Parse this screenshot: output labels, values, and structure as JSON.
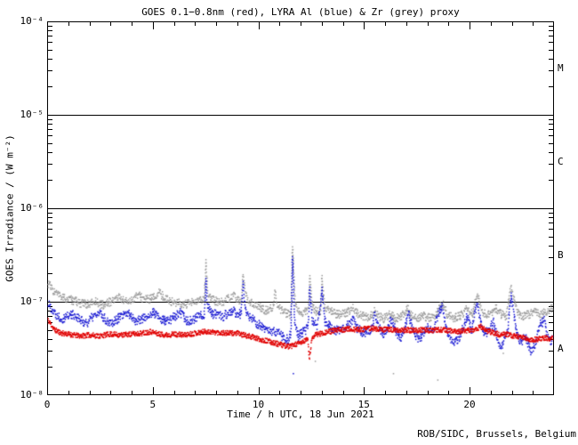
{
  "chart_data": {
    "type": "scatter",
    "title": "GOES 0.1−0.8nm (red), LYRA Al (blue) & Zr (grey) proxy",
    "xlabel": "Time / h UTC, 18 Jun 2021",
    "ylabel": "GOES Irradiance / (W m⁻²)",
    "credit": "ROB/SIDC, Brussels, Belgium",
    "x_range_hours": [
      0,
      24
    ],
    "x_major_ticks": [
      0,
      5,
      10,
      15,
      20
    ],
    "x_minor_step_hours": 1,
    "y_scale": "log",
    "y_decade_exponents": [
      -4,
      -5,
      -6,
      -7,
      -8
    ],
    "y_tick_labels": [
      "10⁻⁴",
      "10⁻⁵",
      "10⁻⁶",
      "10⁻⁷",
      "10⁻⁸"
    ],
    "horizontal_lines_w_m2": [
      1e-05,
      1e-06,
      1e-07
    ],
    "flare_class_labels": [
      "M",
      "C",
      "B",
      "A"
    ],
    "grid": "off",
    "legend": "in title",
    "value_unit": "1e-8 W m^-2",
    "series": [
      {
        "name": "GOES 0.1-0.8nm",
        "color": "#e00000",
        "points": [
          [
            0,
            6.6
          ],
          [
            0.35,
            5
          ],
          [
            0.7,
            4.6
          ],
          [
            1,
            4.5
          ],
          [
            1.5,
            4.3
          ],
          [
            2,
            4.4
          ],
          [
            2.5,
            4.3
          ],
          [
            3,
            4.5
          ],
          [
            3.5,
            4.4
          ],
          [
            4,
            4.5
          ],
          [
            4.5,
            4.6
          ],
          [
            4.9,
            4.8
          ],
          [
            5.3,
            4.5
          ],
          [
            5.7,
            4.4
          ],
          [
            6,
            4.5
          ],
          [
            6.5,
            4.4
          ],
          [
            7,
            4.6
          ],
          [
            7.5,
            4.8
          ],
          [
            8,
            4.7
          ],
          [
            8.5,
            4.6
          ],
          [
            9,
            4.6
          ],
          [
            9.3,
            4.4
          ],
          [
            9.7,
            4.2
          ],
          [
            10,
            4
          ],
          [
            10.4,
            3.8
          ],
          [
            10.8,
            3.6
          ],
          [
            11.2,
            3.4
          ],
          [
            11.5,
            3.3
          ],
          [
            11.8,
            3.5
          ],
          [
            12.1,
            3.7
          ],
          [
            12.35,
            4
          ],
          [
            12.42,
            2.4
          ],
          [
            12.55,
            4.2
          ],
          [
            12.8,
            4.5
          ],
          [
            13,
            4.6
          ],
          [
            13.4,
            4.8
          ],
          [
            13.8,
            5
          ],
          [
            14.2,
            5.1
          ],
          [
            14.6,
            5
          ],
          [
            15,
            5.1
          ],
          [
            15.4,
            5.2
          ],
          [
            15.8,
            5
          ],
          [
            16.2,
            5.1
          ],
          [
            16.6,
            4.9
          ],
          [
            17,
            5
          ],
          [
            17.4,
            4.9
          ],
          [
            17.8,
            5
          ],
          [
            18.2,
            4.9
          ],
          [
            18.6,
            5
          ],
          [
            19,
            4.9
          ],
          [
            19.4,
            4.8
          ],
          [
            19.8,
            4.9
          ],
          [
            20.2,
            5
          ],
          [
            20.55,
            5.4
          ],
          [
            20.9,
            4.8
          ],
          [
            21.2,
            4.6
          ],
          [
            21.5,
            4.4
          ],
          [
            21.8,
            4.5
          ],
          [
            22.1,
            4.3
          ],
          [
            22.4,
            4.2
          ],
          [
            22.7,
            4
          ],
          [
            23,
            3.9
          ],
          [
            23.3,
            4
          ],
          [
            23.6,
            4.1
          ],
          [
            23.85,
            4
          ],
          [
            24,
            4.2
          ]
        ],
        "outliers": []
      },
      {
        "name": "LYRA Al proxy",
        "color": "#1818d2",
        "points": [
          [
            0,
            10
          ],
          [
            0.35,
            7.6
          ],
          [
            0.7,
            6.6
          ],
          [
            0.95,
            7
          ],
          [
            1.25,
            7.4
          ],
          [
            1.6,
            6.2
          ],
          [
            1.9,
            6
          ],
          [
            2.2,
            7
          ],
          [
            2.5,
            7.5
          ],
          [
            2.8,
            6.3
          ],
          [
            3.1,
            6.1
          ],
          [
            3.5,
            6.9
          ],
          [
            3.85,
            7.5
          ],
          [
            4.2,
            6.3
          ],
          [
            4.55,
            6.6
          ],
          [
            4.85,
            7.3
          ],
          [
            5.05,
            7.6
          ],
          [
            5.35,
            6.5
          ],
          [
            5.7,
            6.2
          ],
          [
            6,
            6.8
          ],
          [
            6.3,
            7.5
          ],
          [
            6.6,
            6.3
          ],
          [
            6.9,
            6.4
          ],
          [
            7.2,
            7
          ],
          [
            7.45,
            7.4
          ],
          [
            7.52,
            17
          ],
          [
            7.6,
            9
          ],
          [
            7.75,
            7.6
          ],
          [
            8,
            7.2
          ],
          [
            8.3,
            6.9
          ],
          [
            8.6,
            7.6
          ],
          [
            8.85,
            7.9
          ],
          [
            9.05,
            7.2
          ],
          [
            9.2,
            7.6
          ],
          [
            9.28,
            15
          ],
          [
            9.4,
            8
          ],
          [
            9.55,
            7
          ],
          [
            9.8,
            6.2
          ],
          [
            10.05,
            5.6
          ],
          [
            10.3,
            5.2
          ],
          [
            10.6,
            4.6
          ],
          [
            10.9,
            4.9
          ],
          [
            11.15,
            4.2
          ],
          [
            11.4,
            3.9
          ],
          [
            11.55,
            4.5
          ],
          [
            11.62,
            33
          ],
          [
            11.72,
            5.5
          ],
          [
            11.9,
            4.3
          ],
          [
            12.1,
            4.7
          ],
          [
            12.35,
            5.2
          ],
          [
            12.44,
            13
          ],
          [
            12.55,
            6.2
          ],
          [
            12.8,
            5.4
          ],
          [
            13.02,
            13
          ],
          [
            13.15,
            6.2
          ],
          [
            13.35,
            5.6
          ],
          [
            13.65,
            5
          ],
          [
            13.95,
            4.9
          ],
          [
            14.25,
            5.6
          ],
          [
            14.5,
            6.6
          ],
          [
            14.65,
            5.3
          ],
          [
            14.9,
            4.7
          ],
          [
            15.1,
            4.6
          ],
          [
            15.35,
            5.2
          ],
          [
            15.52,
            7.4
          ],
          [
            15.7,
            5.5
          ],
          [
            15.95,
            4.5
          ],
          [
            16.1,
            5.3
          ],
          [
            16.3,
            6.5
          ],
          [
            16.55,
            4.7
          ],
          [
            16.75,
            4.1
          ],
          [
            16.95,
            5.2
          ],
          [
            17.08,
            7.8
          ],
          [
            17.25,
            5.7
          ],
          [
            17.45,
            4.3
          ],
          [
            17.65,
            3.9
          ],
          [
            17.85,
            4.7
          ],
          [
            18.05,
            5.3
          ],
          [
            18.25,
            4.5
          ],
          [
            18.5,
            7
          ],
          [
            18.72,
            9.2
          ],
          [
            18.9,
            5.1
          ],
          [
            19.1,
            4.1
          ],
          [
            19.35,
            3.7
          ],
          [
            19.6,
            4.5
          ],
          [
            19.9,
            7.2
          ],
          [
            20.1,
            4.9
          ],
          [
            20.37,
            10
          ],
          [
            20.55,
            5.5
          ],
          [
            20.75,
            4.5
          ],
          [
            20.95,
            5.3
          ],
          [
            21.15,
            6
          ],
          [
            21.35,
            3.7
          ],
          [
            21.55,
            3.4
          ],
          [
            21.8,
            4.7
          ],
          [
            21.97,
            12
          ],
          [
            22.08,
            8
          ],
          [
            22.25,
            4.7
          ],
          [
            22.45,
            3.6
          ],
          [
            22.65,
            4.3
          ],
          [
            22.9,
            3
          ],
          [
            23.1,
            3.5
          ],
          [
            23.35,
            5.7
          ],
          [
            23.55,
            6.3
          ],
          [
            23.7,
            4.1
          ],
          [
            23.87,
            3.6
          ],
          [
            24,
            4.6
          ]
        ],
        "outliers": [
          [
            11.66,
            1.7
          ]
        ]
      },
      {
        "name": "LYRA Zr proxy",
        "color": "#9c9c9c",
        "points": [
          [
            0,
            16.5
          ],
          [
            0.3,
            13
          ],
          [
            0.6,
            11.5
          ],
          [
            1,
            10.6
          ],
          [
            1.3,
            10.2
          ],
          [
            1.6,
            9.6
          ],
          [
            2,
            9.4
          ],
          [
            2.3,
            10
          ],
          [
            2.6,
            9.2
          ],
          [
            2.9,
            9.7
          ],
          [
            3.2,
            10.7
          ],
          [
            3.4,
            11.2
          ],
          [
            3.7,
            10
          ],
          [
            4,
            10.4
          ],
          [
            4.3,
            11.8
          ],
          [
            4.6,
            10.6
          ],
          [
            5,
            10.8
          ],
          [
            5.3,
            12.4
          ],
          [
            5.6,
            11
          ],
          [
            5.9,
            10
          ],
          [
            6.3,
            9.6
          ],
          [
            6.6,
            9.3
          ],
          [
            6.9,
            9.8
          ],
          [
            7.2,
            10.2
          ],
          [
            7.45,
            10.4
          ],
          [
            7.52,
            26
          ],
          [
            7.62,
            12
          ],
          [
            7.8,
            10.6
          ],
          [
            8,
            10.1
          ],
          [
            8.3,
            9.9
          ],
          [
            8.6,
            10.8
          ],
          [
            8.85,
            11.4
          ],
          [
            9.05,
            10.4
          ],
          [
            9.2,
            10.8
          ],
          [
            9.28,
            21
          ],
          [
            9.4,
            11.5
          ],
          [
            9.55,
            10.3
          ],
          [
            9.8,
            9.4
          ],
          [
            10.05,
            8.8
          ],
          [
            10.3,
            8.1
          ],
          [
            10.55,
            8.3
          ],
          [
            10.72,
            9
          ],
          [
            10.8,
            14.2
          ],
          [
            10.9,
            9
          ],
          [
            11.1,
            8
          ],
          [
            11.35,
            7.4
          ],
          [
            11.55,
            7.1
          ],
          [
            11.62,
            39
          ],
          [
            11.75,
            9.5
          ],
          [
            11.95,
            7.5
          ],
          [
            12.15,
            7.7
          ],
          [
            12.35,
            8
          ],
          [
            12.44,
            17.5
          ],
          [
            12.55,
            9.2
          ],
          [
            12.75,
            7.8
          ],
          [
            12.95,
            8
          ],
          [
            13.02,
            17.5
          ],
          [
            13.15,
            9
          ],
          [
            13.35,
            8.1
          ],
          [
            13.65,
            7.5
          ],
          [
            13.95,
            7.3
          ],
          [
            14.25,
            7.8
          ],
          [
            14.5,
            8.7
          ],
          [
            14.65,
            7.7
          ],
          [
            14.9,
            7
          ],
          [
            15.1,
            6.8
          ],
          [
            15.3,
            7.1
          ],
          [
            15.52,
            7.9
          ],
          [
            15.7,
            7
          ],
          [
            15.95,
            6.6
          ],
          [
            16.2,
            7.3
          ],
          [
            16.5,
            6.6
          ],
          [
            16.8,
            7
          ],
          [
            17.08,
            8.5
          ],
          [
            17.25,
            7
          ],
          [
            17.55,
            6.6
          ],
          [
            17.85,
            7
          ],
          [
            18.15,
            6.7
          ],
          [
            18.45,
            7.4
          ],
          [
            18.6,
            8.8
          ],
          [
            18.75,
            9.3
          ],
          [
            18.95,
            7.3
          ],
          [
            19.25,
            6.6
          ],
          [
            19.55,
            7
          ],
          [
            19.9,
            8.5
          ],
          [
            20.15,
            7.4
          ],
          [
            20.37,
            12.7
          ],
          [
            20.55,
            8
          ],
          [
            20.8,
            7.2
          ],
          [
            21.05,
            7.7
          ],
          [
            21.25,
            8.6
          ],
          [
            21.45,
            7.4
          ],
          [
            21.75,
            7
          ],
          [
            21.97,
            15.2
          ],
          [
            22.1,
            11
          ],
          [
            22.3,
            7.6
          ],
          [
            22.55,
            7
          ],
          [
            22.85,
            7.4
          ],
          [
            23.1,
            8
          ],
          [
            23.4,
            7.2
          ],
          [
            23.6,
            7.8
          ],
          [
            23.85,
            8.3
          ],
          [
            24,
            8.6
          ]
        ],
        "outliers": [
          [
            12.7,
            2.3
          ],
          [
            16.4,
            1.7
          ],
          [
            18.5,
            1.45
          ],
          [
            21.6,
            2.8
          ]
        ]
      }
    ]
  }
}
